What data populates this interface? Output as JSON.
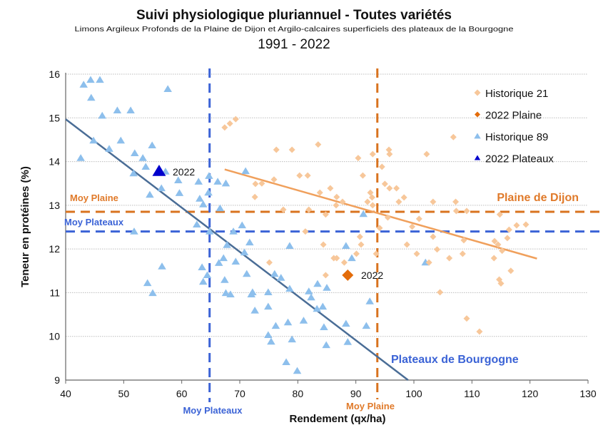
{
  "chart_data": {
    "type": "scatter",
    "title": "Suivi physiologique pluriannuel - Toutes variétés",
    "subtitle": "Limons Argileux Profonds de la Plaine de Dijon et Argilo-calcaires superficiels des plateaux de la Bourgogne",
    "period": "1991 - 2022",
    "xlabel": "Rendement (qx/ha)",
    "ylabel": "Teneur en protéines (%)",
    "xlim": [
      40,
      130
    ],
    "ylim": [
      9,
      16
    ],
    "xticks": [
      "40",
      "50",
      "60",
      "70",
      "80",
      "90",
      "100",
      "110",
      "120",
      "130"
    ],
    "yticks": [
      "9",
      "10",
      "11",
      "12",
      "13",
      "14",
      "15",
      "16"
    ],
    "grid": "horizontal dotted",
    "legend_position": "top-right",
    "legend": [
      "Historique 21",
      "2022 Plaine",
      "Historique 89",
      "2022 Plateaux"
    ],
    "colors": {
      "historique_21": "#F7C79A",
      "plaine_2022": "#E36C0A",
      "historique_89": "#8DBFEC",
      "plateaux_2022": "#0000CC",
      "moy_plaine_line": "#D9731F",
      "moy_plateaux_line": "#3B63D6",
      "trend_plaine": "#F0A05C",
      "trend_plateaux": "#4A6D96"
    },
    "series": [
      {
        "name": "Historique 21",
        "marker": "diamond",
        "points": [
          [
            67.4,
            14.78
          ],
          [
            68.3,
            14.87
          ],
          [
            69.3,
            14.97
          ],
          [
            76.3,
            14.27
          ],
          [
            79.0,
            14.27
          ],
          [
            83.5,
            14.39
          ],
          [
            90.4,
            14.08
          ],
          [
            92.9,
            14.17
          ],
          [
            95.7,
            14.27
          ],
          [
            95.8,
            14.17
          ],
          [
            102.2,
            14.17
          ],
          [
            106.8,
            14.56
          ],
          [
            94.5,
            13.88
          ],
          [
            80.3,
            13.68
          ],
          [
            81.7,
            13.68
          ],
          [
            91.2,
            13.68
          ],
          [
            75.9,
            13.59
          ],
          [
            72.7,
            13.49
          ],
          [
            73.8,
            13.5
          ],
          [
            72.6,
            13.19
          ],
          [
            85.6,
            13.39
          ],
          [
            83.8,
            13.29
          ],
          [
            86.7,
            13.19
          ],
          [
            87.7,
            13.08
          ],
          [
            92.5,
            13.29
          ],
          [
            92.8,
            13.18
          ],
          [
            92.0,
            13.08
          ],
          [
            92.9,
            13.0
          ],
          [
            95.0,
            13.49
          ],
          [
            95.8,
            13.39
          ],
          [
            97.0,
            13.39
          ],
          [
            98.3,
            13.18
          ],
          [
            97.4,
            13.08
          ],
          [
            77.5,
            12.9
          ],
          [
            81.9,
            12.9
          ],
          [
            84.8,
            12.79
          ],
          [
            86.6,
            13.0
          ],
          [
            103.3,
            13.08
          ],
          [
            107.2,
            13.08
          ],
          [
            107.3,
            12.87
          ],
          [
            109.1,
            12.87
          ],
          [
            95.5,
            12.72
          ],
          [
            100.9,
            12.69
          ],
          [
            99.7,
            12.51
          ],
          [
            114.8,
            12.79
          ],
          [
            117.7,
            12.54
          ],
          [
            119.3,
            12.56
          ],
          [
            116.4,
            12.44
          ],
          [
            81.3,
            12.4
          ],
          [
            94.1,
            12.48
          ],
          [
            103.3,
            12.28
          ],
          [
            90.7,
            12.28
          ],
          [
            116.1,
            12.25
          ],
          [
            84.4,
            12.1
          ],
          [
            90.9,
            12.1
          ],
          [
            98.8,
            12.1
          ],
          [
            108.6,
            12.2
          ],
          [
            113.9,
            12.18
          ],
          [
            114.5,
            12.1
          ],
          [
            90.1,
            11.89
          ],
          [
            93.5,
            11.89
          ],
          [
            100.5,
            11.89
          ],
          [
            104.0,
            11.99
          ],
          [
            108.4,
            11.89
          ],
          [
            115.2,
            11.96
          ],
          [
            86.2,
            11.79
          ],
          [
            86.7,
            11.79
          ],
          [
            75.1,
            11.69
          ],
          [
            88.0,
            11.69
          ],
          [
            102.6,
            11.69
          ],
          [
            106.1,
            11.79
          ],
          [
            113.8,
            11.79
          ],
          [
            84.8,
            11.4
          ],
          [
            116.7,
            11.5
          ],
          [
            114.7,
            11.3
          ],
          [
            115.0,
            11.21
          ],
          [
            104.5,
            11.01
          ],
          [
            109.1,
            10.41
          ],
          [
            111.3,
            10.11
          ]
        ]
      },
      {
        "name": "2022 Plaine",
        "marker": "diamond",
        "points": [
          [
            88.6,
            11.4
          ]
        ],
        "label": "2022"
      },
      {
        "name": "Historique 89",
        "marker": "triangle",
        "points": [
          [
            43.1,
            15.76
          ],
          [
            44.3,
            15.87
          ],
          [
            45.9,
            15.87
          ],
          [
            44.4,
            15.46
          ],
          [
            46.3,
            15.05
          ],
          [
            48.9,
            15.17
          ],
          [
            51.2,
            15.17
          ],
          [
            57.6,
            15.66
          ],
          [
            44.8,
            14.48
          ],
          [
            49.5,
            14.48
          ],
          [
            51.9,
            14.19
          ],
          [
            42.6,
            14.08
          ],
          [
            47.5,
            14.29
          ],
          [
            51.7,
            13.73
          ],
          [
            54.9,
            14.37
          ],
          [
            53.3,
            14.08
          ],
          [
            53.8,
            13.88
          ],
          [
            57.2,
            13.77
          ],
          [
            54.5,
            13.24
          ],
          [
            56.5,
            13.39
          ],
          [
            59.4,
            13.57
          ],
          [
            59.6,
            13.28
          ],
          [
            62.9,
            13.54
          ],
          [
            63.1,
            13.15
          ],
          [
            63.7,
            13.02
          ],
          [
            64.7,
            13.67
          ],
          [
            64.6,
            13.29
          ],
          [
            66.2,
            13.54
          ],
          [
            66.6,
            12.93
          ],
          [
            51.8,
            12.4
          ],
          [
            64.8,
            12.4
          ],
          [
            62.6,
            12.56
          ],
          [
            68.9,
            12.4
          ],
          [
            71.7,
            12.15
          ],
          [
            67.8,
            12.09
          ],
          [
            70.8,
            11.92
          ],
          [
            69.3,
            11.71
          ],
          [
            67.2,
            11.79
          ],
          [
            64.4,
            11.4
          ],
          [
            63.5,
            11.58
          ],
          [
            56.6,
            11.6
          ],
          [
            54.1,
            11.22
          ],
          [
            55.0,
            10.99
          ],
          [
            63.7,
            11.25
          ],
          [
            66.4,
            11.68
          ],
          [
            67.4,
            11.29
          ],
          [
            68.4,
            10.96
          ],
          [
            71.2,
            11.43
          ],
          [
            72.0,
            10.96
          ],
          [
            67.6,
            10.99
          ],
          [
            72.2,
            11.01
          ],
          [
            72.6,
            10.59
          ],
          [
            74.9,
            10.68
          ],
          [
            74.9,
            11.01
          ],
          [
            76.0,
            11.43
          ],
          [
            78.6,
            12.07
          ],
          [
            77.1,
            11.34
          ],
          [
            78.6,
            11.09
          ],
          [
            76.2,
            10.24
          ],
          [
            75.4,
            9.88
          ],
          [
            78.3,
            10.32
          ],
          [
            79.0,
            9.93
          ],
          [
            74.9,
            10.03
          ],
          [
            82.3,
            10.89
          ],
          [
            81.9,
            11.03
          ],
          [
            84.3,
            10.68
          ],
          [
            78.0,
            9.41
          ],
          [
            79.9,
            9.21
          ],
          [
            81.0,
            10.36
          ],
          [
            84.5,
            10.21
          ],
          [
            88.3,
            10.29
          ],
          [
            91.8,
            10.24
          ],
          [
            92.4,
            10.8
          ],
          [
            91.3,
            12.8
          ],
          [
            88.3,
            12.07
          ],
          [
            89.3,
            11.79
          ],
          [
            85.0,
            11.11
          ],
          [
            83.4,
            11.2
          ],
          [
            83.3,
            10.63
          ],
          [
            84.9,
            9.8
          ],
          [
            70.4,
            12.54
          ],
          [
            67.6,
            13.5
          ],
          [
            71.0,
            13.78
          ],
          [
            88.6,
            9.87
          ],
          [
            102.0,
            11.69
          ]
        ]
      },
      {
        "name": "2022 Plateaux",
        "marker": "triangle",
        "points": [
          [
            56.1,
            13.78
          ]
        ],
        "label": "2022"
      }
    ],
    "trend_lines": [
      {
        "label": "Plaine de Dijon",
        "from": [
          67.4,
          13.82
        ],
        "to": [
          121.2,
          11.78
        ]
      },
      {
        "label": "Plateaux de Bourgogne",
        "from": [
          40,
          14.97
        ],
        "to": [
          99.0,
          9.0
        ]
      }
    ],
    "reference_lines": {
      "moy_plaine": {
        "label": "Moy Plaine",
        "x": 93.7,
        "y": 12.85
      },
      "moy_plateaux": {
        "label": "Moy Plateaux",
        "x": 64.8,
        "y": 12.4
      }
    }
  }
}
